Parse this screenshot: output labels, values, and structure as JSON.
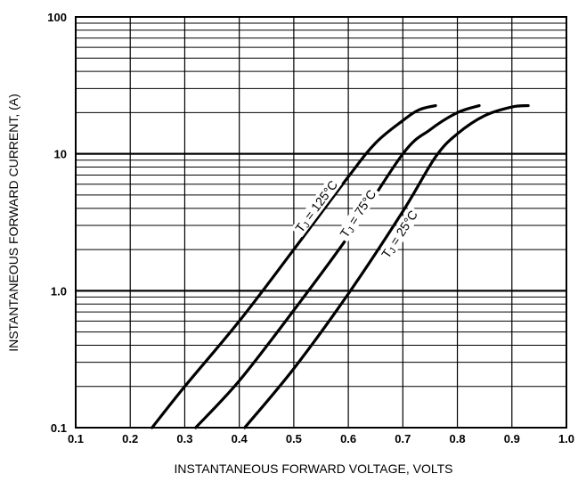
{
  "chart_data": {
    "type": "line",
    "title": "",
    "xlabel": "INSTANTANEOUS FORWARD VOLTAGE, VOLTS",
    "ylabel": "INSTANTANEOUS  FORWARD CURRENT, (A)",
    "x_scale": "linear",
    "y_scale": "log",
    "xlim": [
      0.1,
      1.0
    ],
    "ylim": [
      0.1,
      100
    ],
    "grid": true,
    "x_ticks": [
      "0.1",
      "0.2",
      "0.3",
      "0.4",
      "0.5",
      "0.6",
      "0.7",
      "0.8",
      "0.9",
      "1.0"
    ],
    "y_ticks": [
      "0.1",
      "1.0",
      "10",
      "100"
    ],
    "series": [
      {
        "label_prefix": "T",
        "label_subscript": "J",
        "label_suffix": " = 125°C",
        "points": [
          [
            0.24,
            0.1
          ],
          [
            0.3,
            0.2
          ],
          [
            0.4,
            0.6
          ],
          [
            0.5,
            2.0
          ],
          [
            0.6,
            6.8
          ],
          [
            0.65,
            12.0
          ],
          [
            0.7,
            17.5
          ],
          [
            0.73,
            21.0
          ],
          [
            0.76,
            22.5
          ]
        ]
      },
      {
        "label_prefix": "T",
        "label_subscript": "J",
        "label_suffix": " = 75°C",
        "points": [
          [
            0.32,
            0.1
          ],
          [
            0.4,
            0.22
          ],
          [
            0.5,
            0.72
          ],
          [
            0.6,
            2.5
          ],
          [
            0.7,
            10.0
          ],
          [
            0.75,
            15.0
          ],
          [
            0.8,
            20.0
          ],
          [
            0.84,
            22.5
          ]
        ]
      },
      {
        "label_prefix": "T",
        "label_subscript": "J",
        "label_suffix": " = 25°C",
        "points": [
          [
            0.41,
            0.1
          ],
          [
            0.5,
            0.27
          ],
          [
            0.6,
            0.95
          ],
          [
            0.7,
            3.8
          ],
          [
            0.76,
            9.5
          ],
          [
            0.8,
            14.0
          ],
          [
            0.85,
            19.0
          ],
          [
            0.9,
            22.0
          ],
          [
            0.93,
            22.5
          ]
        ]
      }
    ]
  }
}
